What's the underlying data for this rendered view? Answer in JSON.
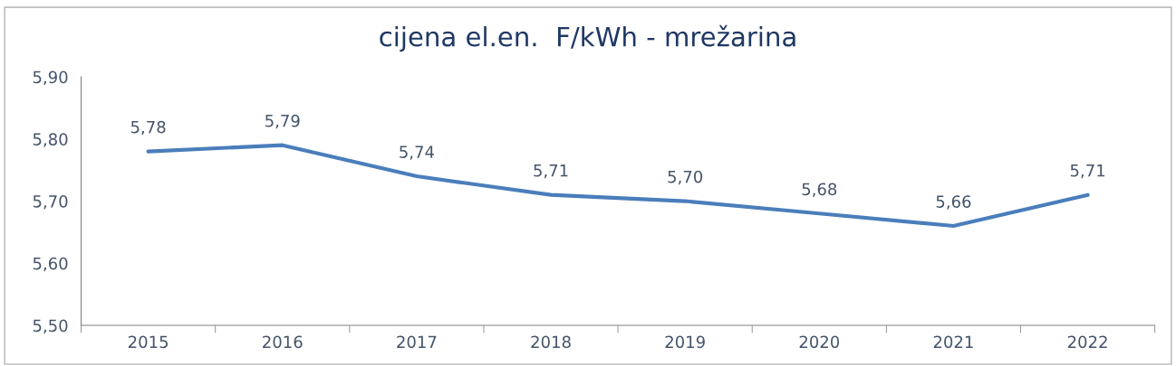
{
  "chart_data": {
    "type": "line",
    "title": "cijena el.en.  F/kWh - mrežarina",
    "categories": [
      "2015",
      "2016",
      "2017",
      "2018",
      "2019",
      "2020",
      "2021",
      "2022"
    ],
    "series": [
      {
        "color": "#4a7ebb",
        "values": [
          5.78,
          5.79,
          5.74,
          5.71,
          5.7,
          5.68,
          5.66,
          5.71
        ],
        "value_labels": [
          "5,78",
          "5,79",
          "5,74",
          "5,71",
          "5,70",
          "5,68",
          "5,66",
          "5,71"
        ]
      }
    ],
    "ylim": [
      5.5,
      5.9
    ],
    "yticks": [
      {
        "value": 5.5,
        "label": "5,50"
      },
      {
        "value": 5.6,
        "label": "5,60"
      },
      {
        "value": 5.7,
        "label": "5,70"
      },
      {
        "value": 5.8,
        "label": "5,80"
      },
      {
        "value": 5.9,
        "label": "5,90"
      }
    ],
    "grid": false,
    "legend": false,
    "marker": "none",
    "line_style": "solid"
  }
}
